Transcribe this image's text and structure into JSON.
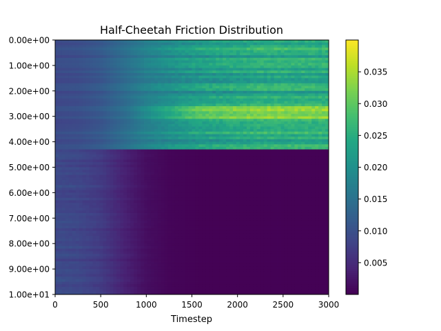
{
  "chart_data": {
    "type": "heatmap",
    "title": "Half-Cheetah Friction Distribution",
    "xlabel": "Timestep",
    "ylabel": "",
    "xlim": [
      0,
      3000
    ],
    "ylim": [
      0,
      10
    ],
    "x_ticks": [
      {
        "value": 0,
        "label": "0"
      },
      {
        "value": 500,
        "label": "500"
      },
      {
        "value": 1000,
        "label": "1000"
      },
      {
        "value": 1500,
        "label": "1500"
      },
      {
        "value": 2000,
        "label": "2000"
      },
      {
        "value": 2500,
        "label": "2500"
      },
      {
        "value": 3000,
        "label": "3000"
      }
    ],
    "y_ticks": [
      {
        "value": 0,
        "label": "0.00e+00"
      },
      {
        "value": 1,
        "label": "1.00e+00"
      },
      {
        "value": 2,
        "label": "2.00e+00"
      },
      {
        "value": 3,
        "label": "3.00e+00"
      },
      {
        "value": 4,
        "label": "4.00e+00"
      },
      {
        "value": 5,
        "label": "5.00e+00"
      },
      {
        "value": 6,
        "label": "6.00e+00"
      },
      {
        "value": 7,
        "label": "7.00e+00"
      },
      {
        "value": 8,
        "label": "8.00e+00"
      },
      {
        "value": 9,
        "label": "9.00e+00"
      },
      {
        "value": 10,
        "label": "1.00e+01"
      }
    ],
    "colorbar": {
      "min": 0.0,
      "max": 0.04,
      "ticks": [
        {
          "value": 0.005,
          "label": "0.005"
        },
        {
          "value": 0.01,
          "label": "0.010"
        },
        {
          "value": 0.015,
          "label": "0.015"
        },
        {
          "value": 0.02,
          "label": "0.020"
        },
        {
          "value": 0.025,
          "label": "0.025"
        },
        {
          "value": 0.03,
          "label": "0.030"
        },
        {
          "value": 0.035,
          "label": "0.035"
        }
      ]
    },
    "colormap": "viridis",
    "friction_boundary": 4.3,
    "profile": {
      "timesteps": [
        0,
        250,
        500,
        750,
        1000,
        1250,
        1500,
        1750,
        2000,
        2250,
        2500,
        2750,
        3000
      ],
      "low_friction_values": [
        0.009,
        0.0095,
        0.011,
        0.014,
        0.017,
        0.019,
        0.021,
        0.022,
        0.023,
        0.024,
        0.024,
        0.024,
        0.024
      ],
      "high_friction_values": [
        0.009,
        0.0085,
        0.007,
        0.004,
        0.0015,
        0.0005,
        0.0002,
        0.0001,
        0.0001,
        0.0001,
        0.0001,
        0.0001,
        0.0001
      ],
      "peak_band": [
        2.2,
        3.6
      ],
      "peak_value": 0.033
    }
  }
}
